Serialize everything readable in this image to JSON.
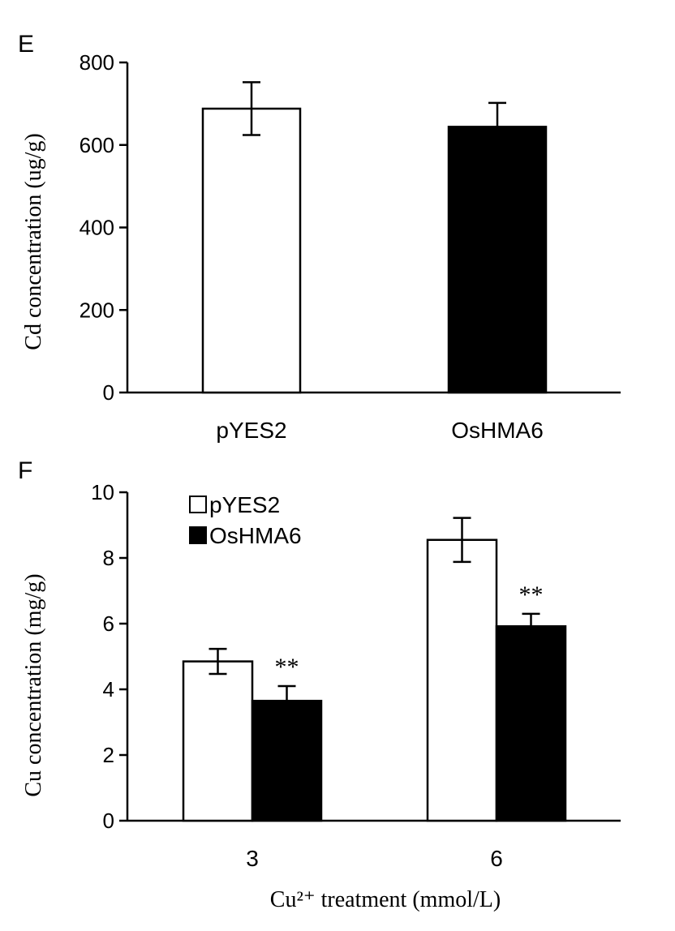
{
  "chart_data": [
    {
      "panel": "E",
      "type": "bar",
      "categories": [
        "pYES2",
        "OsHMA6"
      ],
      "values": [
        688,
        644
      ],
      "errors": [
        64,
        58
      ],
      "bar_colors": [
        "#ffffff",
        "#000000"
      ],
      "ylabel": "Cd concentration (ug/g)",
      "xlabel": "",
      "ylim": [
        0,
        800
      ],
      "yticks": [
        "0",
        "200",
        "400",
        "600",
        "800"
      ]
    },
    {
      "panel": "F",
      "type": "bar",
      "categories": [
        "3",
        "6"
      ],
      "series": [
        {
          "name": "pYES2",
          "color": "#ffffff",
          "values": [
            4.85,
            8.55
          ],
          "errors": [
            0.38,
            0.67
          ]
        },
        {
          "name": "OsHMA6",
          "color": "#000000",
          "values": [
            3.65,
            5.92
          ],
          "errors": [
            0.45,
            0.38
          ]
        }
      ],
      "annotations": [
        "**",
        "**"
      ],
      "ylabel": "Cu concentration (mg/g)",
      "xlabel": "Cu²⁺ treatment (mmol/L)",
      "ylim": [
        0,
        10
      ],
      "yticks": [
        "0",
        "2",
        "4",
        "6",
        "8",
        "10"
      ],
      "legend_position": "top-left"
    }
  ]
}
